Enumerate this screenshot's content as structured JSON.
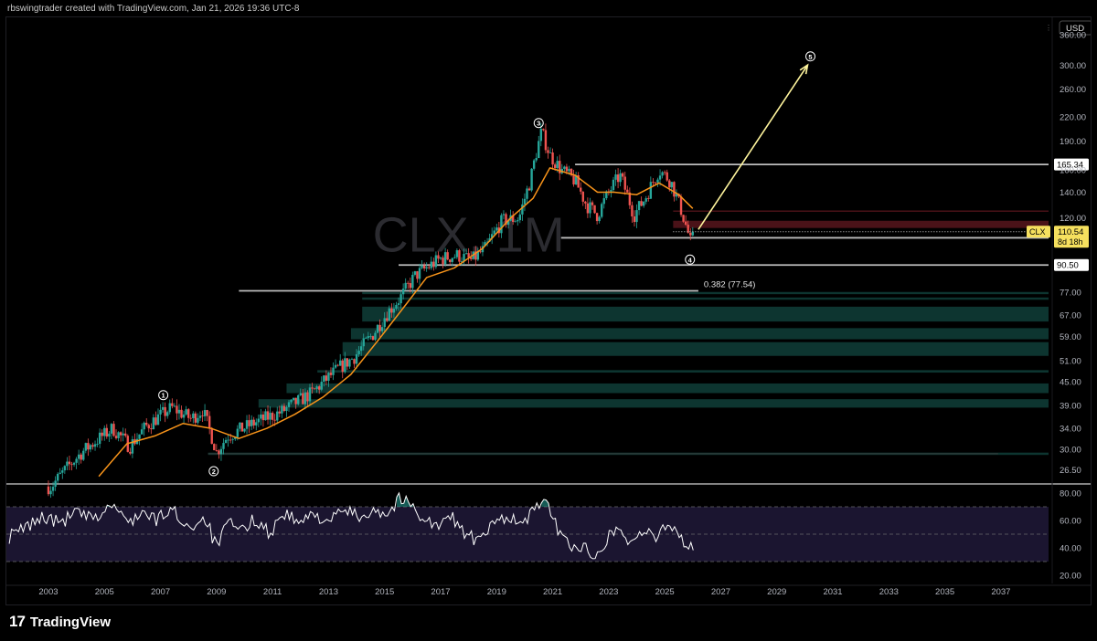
{
  "header": {
    "attribution": "rbswingtrader created with TradingView.com, Jan 21, 2026 19:36 UTC-8"
  },
  "footer": {
    "brand": "TradingView",
    "logo_mark": "17"
  },
  "colors": {
    "background": "#000000",
    "up_candle": "#26a69a",
    "down_candle": "#ef5350",
    "ma_line": "#f7931a",
    "rsi_line": "#ffffff",
    "rsi_band": "#1b1530",
    "overbought_fill": "#26a69a",
    "support_zone": "#0e3b35",
    "resistance_zone": "#4a1218",
    "level_line": "#bdbdbd",
    "projection_arrow": "#fff59d",
    "price_tag": "#f6e05e"
  },
  "chart_data": [
    {
      "type": "candlestick",
      "symbol": "CLX",
      "interval": "1M",
      "watermark": "CLX, 1M",
      "currency": "USD",
      "y_scale": "log",
      "ylim": [
        24.5,
        395
      ],
      "xlim": [
        2001.5,
        2038.7
      ],
      "x_ticks": [
        "2003",
        "2005",
        "2007",
        "2009",
        "2011",
        "2013",
        "2015",
        "2017",
        "2019",
        "2021",
        "2023",
        "2025",
        "2027",
        "2029",
        "2031",
        "2033",
        "2035",
        "2037"
      ],
      "y_ticks": [
        "360.00",
        "300.00",
        "260.00",
        "220.00",
        "190.00",
        "160.00",
        "140.00",
        "120.00",
        "106.54",
        "90.50",
        "77.00",
        "67.00",
        "59.00",
        "51.00",
        "45.00",
        "39.00",
        "34.00",
        "30.00",
        "26.50"
      ],
      "price_anchors": [
        {
          "x": 2003.1,
          "y": 24.0
        },
        {
          "x": 2004.2,
          "y": 29.5
        },
        {
          "x": 2005.3,
          "y": 34.0
        },
        {
          "x": 2005.9,
          "y": 30.5
        },
        {
          "x": 2006.5,
          "y": 34.5
        },
        {
          "x": 2007.4,
          "y": 38.5
        },
        {
          "x": 2008.1,
          "y": 36.0
        },
        {
          "x": 2008.5,
          "y": 38.0
        },
        {
          "x": 2009.0,
          "y": 29.5
        },
        {
          "x": 2009.4,
          "y": 32.5
        },
        {
          "x": 2010.3,
          "y": 35.0
        },
        {
          "x": 2011.3,
          "y": 37.5
        },
        {
          "x": 2012.4,
          "y": 42.0
        },
        {
          "x": 2013.4,
          "y": 49.0
        },
        {
          "x": 2013.9,
          "y": 52.0
        },
        {
          "x": 2014.6,
          "y": 60.0
        },
        {
          "x": 2015.1,
          "y": 68.0
        },
        {
          "x": 2015.6,
          "y": 75.0
        },
        {
          "x": 2016.1,
          "y": 85.0
        },
        {
          "x": 2016.6,
          "y": 90.0
        },
        {
          "x": 2017.0,
          "y": 94.0
        },
        {
          "x": 2017.6,
          "y": 96.0
        },
        {
          "x": 2018.1,
          "y": 93.0
        },
        {
          "x": 2018.6,
          "y": 100.0
        },
        {
          "x": 2019.2,
          "y": 118.0
        },
        {
          "x": 2019.8,
          "y": 120.0
        },
        {
          "x": 2020.2,
          "y": 150.0
        },
        {
          "x": 2020.6,
          "y": 201.0
        },
        {
          "x": 2020.9,
          "y": 175.0
        },
        {
          "x": 2021.3,
          "y": 160.0
        },
        {
          "x": 2021.8,
          "y": 150.0
        },
        {
          "x": 2022.2,
          "y": 130.0
        },
        {
          "x": 2022.6,
          "y": 122.0
        },
        {
          "x": 2023.0,
          "y": 140.0
        },
        {
          "x": 2023.4,
          "y": 155.0
        },
        {
          "x": 2023.9,
          "y": 122.0
        },
        {
          "x": 2024.3,
          "y": 135.0
        },
        {
          "x": 2024.8,
          "y": 160.0
        },
        {
          "x": 2025.2,
          "y": 150.0
        },
        {
          "x": 2025.6,
          "y": 125.0
        },
        {
          "x": 2025.95,
          "y": 102.0
        },
        {
          "x": 2026.05,
          "y": 110.54
        }
      ],
      "ma_anchors": [
        {
          "x": 2004.8,
          "y": 25.5
        },
        {
          "x": 2005.8,
          "y": 31.0
        },
        {
          "x": 2006.8,
          "y": 32.5
        },
        {
          "x": 2007.8,
          "y": 35.0
        },
        {
          "x": 2008.8,
          "y": 34.0
        },
        {
          "x": 2009.8,
          "y": 32.0
        },
        {
          "x": 2010.8,
          "y": 34.0
        },
        {
          "x": 2011.8,
          "y": 37.0
        },
        {
          "x": 2012.8,
          "y": 41.0
        },
        {
          "x": 2013.8,
          "y": 47.0
        },
        {
          "x": 2014.8,
          "y": 58.0
        },
        {
          "x": 2015.8,
          "y": 72.0
        },
        {
          "x": 2016.5,
          "y": 84.0
        },
        {
          "x": 2017.5,
          "y": 89.0
        },
        {
          "x": 2018.5,
          "y": 100.0
        },
        {
          "x": 2019.5,
          "y": 120.0
        },
        {
          "x": 2020.3,
          "y": 135.0
        },
        {
          "x": 2020.9,
          "y": 162.0
        },
        {
          "x": 2021.8,
          "y": 155.0
        },
        {
          "x": 2022.6,
          "y": 140.0
        },
        {
          "x": 2023.2,
          "y": 140.0
        },
        {
          "x": 2024.0,
          "y": 138.0
        },
        {
          "x": 2024.8,
          "y": 148.0
        },
        {
          "x": 2025.5,
          "y": 138.0
        },
        {
          "x": 2026.0,
          "y": 127.0
        }
      ],
      "levels": [
        {
          "label": "165.34",
          "value": 165.34,
          "x_from": 2021.8,
          "tag_style": "white"
        },
        {
          "label": "106.54",
          "value": 106.54,
          "x_from": 2021.3,
          "tag_style": "white"
        },
        {
          "label": "90.50",
          "value": 90.5,
          "x_from": 2015.5,
          "tag_style": "white"
        },
        {
          "label": "0.382 (77.54)",
          "value": 77.54,
          "x_from": 2009.8,
          "x_to": 2026.2,
          "tag_style": "inline"
        }
      ],
      "resistance_zones": [
        {
          "low": 113.0,
          "high": 118.0,
          "x_from": 2025.3
        },
        {
          "low": 124.5,
          "high": 125.5,
          "x_from": 2025.3
        }
      ],
      "support_zones": [
        {
          "low": 76.0,
          "high": 77.0,
          "x_from": 2014.2
        },
        {
          "low": 73.5,
          "high": 74.5,
          "x_from": 2014.2
        },
        {
          "low": 64.5,
          "high": 70.5,
          "x_from": 2014.2
        },
        {
          "low": 58.0,
          "high": 62.0,
          "x_from": 2013.8
        },
        {
          "low": 52.5,
          "high": 57.0,
          "x_from": 2013.5
        },
        {
          "low": 47.5,
          "high": 48.2,
          "x_from": 2012.6
        },
        {
          "low": 42.0,
          "high": 44.5,
          "x_from": 2011.5
        },
        {
          "low": 38.5,
          "high": 40.5,
          "x_from": 2010.5
        },
        {
          "low": 29.0,
          "high": 29.4,
          "x_from": 2008.7
        }
      ],
      "price_tag": {
        "symbol": "CLX",
        "value": "110.54",
        "countdown": "8d 18h"
      },
      "wave_labels": [
        {
          "label": "1",
          "x": 2007.1,
          "y": 41.5
        },
        {
          "label": "2",
          "x": 2008.9,
          "y": 26.3
        },
        {
          "label": "3",
          "x": 2020.5,
          "y": 212.0
        },
        {
          "label": "4",
          "x": 2025.9,
          "y": 93.5
        },
        {
          "label": "5",
          "x": 2030.2,
          "y": 316.0
        }
      ],
      "projection": {
        "from": {
          "x": 2026.2,
          "y": 112.0
        },
        "to": {
          "x": 2030.1,
          "y": 300.0
        }
      }
    },
    {
      "type": "line",
      "indicator": "RSI",
      "ylim": [
        14,
        86
      ],
      "y_ticks": [
        "80.00",
        "60.00",
        "40.00",
        "20.00"
      ],
      "bands": {
        "upper": 70,
        "mid": 50,
        "lower": 30
      },
      "anchors": [
        {
          "x": 2001.6,
          "y": 48
        },
        {
          "x": 2002.2,
          "y": 55
        },
        {
          "x": 2002.8,
          "y": 63
        },
        {
          "x": 2003.4,
          "y": 58
        },
        {
          "x": 2004.0,
          "y": 66
        },
        {
          "x": 2004.6,
          "y": 60
        },
        {
          "x": 2005.3,
          "y": 72
        },
        {
          "x": 2005.8,
          "y": 58
        },
        {
          "x": 2006.3,
          "y": 66
        },
        {
          "x": 2006.8,
          "y": 60
        },
        {
          "x": 2007.4,
          "y": 68
        },
        {
          "x": 2008.0,
          "y": 55
        },
        {
          "x": 2008.6,
          "y": 62
        },
        {
          "x": 2009.0,
          "y": 40
        },
        {
          "x": 2009.4,
          "y": 58
        },
        {
          "x": 2009.9,
          "y": 52
        },
        {
          "x": 2010.4,
          "y": 62
        },
        {
          "x": 2010.9,
          "y": 50
        },
        {
          "x": 2011.4,
          "y": 66
        },
        {
          "x": 2011.9,
          "y": 58
        },
        {
          "x": 2012.5,
          "y": 64
        },
        {
          "x": 2013.1,
          "y": 60
        },
        {
          "x": 2013.6,
          "y": 68
        },
        {
          "x": 2014.1,
          "y": 62
        },
        {
          "x": 2014.6,
          "y": 69
        },
        {
          "x": 2015.1,
          "y": 64
        },
        {
          "x": 2015.5,
          "y": 76
        },
        {
          "x": 2015.9,
          "y": 72
        },
        {
          "x": 2016.4,
          "y": 62
        },
        {
          "x": 2016.9,
          "y": 55
        },
        {
          "x": 2017.4,
          "y": 63
        },
        {
          "x": 2017.9,
          "y": 50
        },
        {
          "x": 2018.4,
          "y": 44
        },
        {
          "x": 2018.9,
          "y": 58
        },
        {
          "x": 2019.4,
          "y": 64
        },
        {
          "x": 2019.9,
          "y": 56
        },
        {
          "x": 2020.4,
          "y": 69
        },
        {
          "x": 2020.65,
          "y": 78
        },
        {
          "x": 2021.0,
          "y": 60
        },
        {
          "x": 2021.5,
          "y": 44
        },
        {
          "x": 2022.0,
          "y": 40
        },
        {
          "x": 2022.5,
          "y": 36
        },
        {
          "x": 2023.0,
          "y": 48
        },
        {
          "x": 2023.3,
          "y": 56
        },
        {
          "x": 2023.7,
          "y": 44
        },
        {
          "x": 2024.2,
          "y": 52
        },
        {
          "x": 2024.7,
          "y": 46
        },
        {
          "x": 2025.0,
          "y": 58
        },
        {
          "x": 2025.4,
          "y": 54
        },
        {
          "x": 2025.8,
          "y": 41
        },
        {
          "x": 2026.05,
          "y": 39
        }
      ]
    }
  ]
}
